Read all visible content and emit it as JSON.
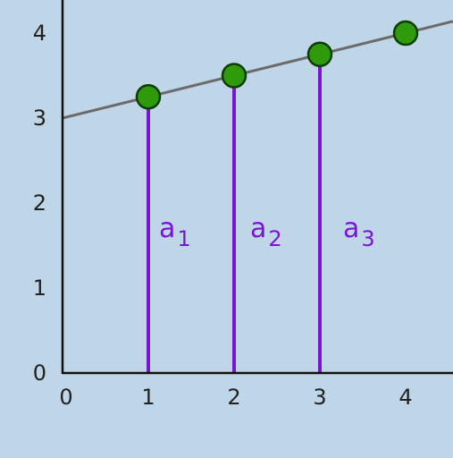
{
  "colors": {
    "background": "#bfd5e8",
    "axis": "#111111",
    "line": "#6b6b6b",
    "point_fill": "#2e9a0c",
    "point_stroke": "#0d3d00",
    "segment": "#7b14d6"
  },
  "chart_data": {
    "type": "line",
    "title": "",
    "xlabel": "",
    "ylabel": "",
    "xlim": [
      0,
      4.5
    ],
    "ylim": [
      0,
      4.4
    ],
    "x_ticks": [
      0,
      1,
      2,
      3,
      4
    ],
    "y_ticks": [
      0,
      1,
      2,
      3,
      4
    ],
    "grid": false,
    "line": {
      "intercept": 3,
      "slope": 0.25
    },
    "points": [
      {
        "x": 1,
        "y": 3.25
      },
      {
        "x": 2,
        "y": 3.5
      },
      {
        "x": 3,
        "y": 3.75
      },
      {
        "x": 4,
        "y": 4
      }
    ],
    "segments": [
      {
        "x": 1,
        "y": 3.25,
        "label": "a",
        "sub": "1"
      },
      {
        "x": 2,
        "y": 3.5,
        "label": "a",
        "sub": "2"
      },
      {
        "x": 3,
        "y": 3.75,
        "label": "a",
        "sub": "3"
      }
    ]
  }
}
